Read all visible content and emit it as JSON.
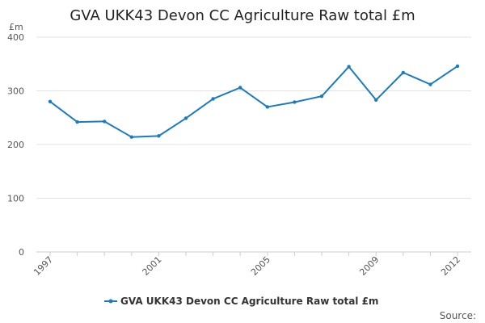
{
  "chart_data": {
    "type": "line",
    "title": "GVA UKK43 Devon CC Agriculture Raw total £m",
    "y_unit": "£m",
    "xlabel": "",
    "ylabel": "",
    "x": [
      1997,
      1998,
      1999,
      2000,
      2001,
      2002,
      2003,
      2004,
      2005,
      2006,
      2007,
      2008,
      2009,
      2010,
      2011,
      2012
    ],
    "x_tick_labels": [
      "1997",
      "2001",
      "2005",
      "2009",
      "2012"
    ],
    "y_tick_labels": [
      "0",
      "100",
      "200",
      "300",
      "400"
    ],
    "ylim": [
      0,
      400
    ],
    "grid": true,
    "legend_position": "bottom",
    "series": [
      {
        "name": "GVA UKK43 Devon CC Agriculture Raw total £m",
        "color": "#1a7cbf",
        "values": [
          280,
          242,
          243,
          214,
          216,
          249,
          285,
          306,
          270,
          279,
          290,
          345,
          283,
          334,
          312,
          346
        ]
      }
    ]
  },
  "source_label": "Source:"
}
